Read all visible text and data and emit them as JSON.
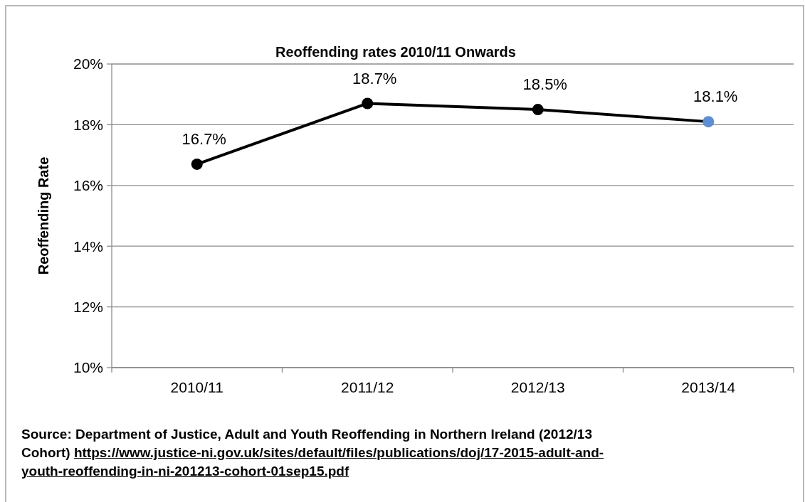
{
  "chart_data": {
    "type": "line",
    "title": "Reoffending rates 2010/11 Onwards",
    "ylabel": "Reoffending Rate",
    "categories": [
      "2010/11",
      "2011/12",
      "2012/13",
      "2013/14"
    ],
    "series": [
      {
        "color": "#000000",
        "colors": [
          "#000000",
          "#000000",
          "#000000",
          "#5b8ed6"
        ],
        "values": [
          16.7,
          18.7,
          18.5,
          18.1
        ],
        "value_labels": [
          "16.7%",
          "18.7%",
          "18.5%",
          "18.1%"
        ]
      }
    ],
    "ylim": [
      10,
      20
    ],
    "yticks": [
      {
        "value": 10,
        "label": "10%"
      },
      {
        "value": 12,
        "label": "12%"
      },
      {
        "value": 14,
        "label": "14%"
      },
      {
        "value": 16,
        "label": "16%"
      },
      {
        "value": 18,
        "label": "18%"
      },
      {
        "value": 20,
        "label": "20%"
      }
    ],
    "grid": "y",
    "marker": "circle",
    "line_style": "solid",
    "annotations": [
      "Source: Department of Justice, Adult and Youth Reoffending in Northern Ireland (2012/13 Cohort)",
      "https://www.justice-ni.gov.uk/sites/default/files/publications/doj/17-2015-adult-and-youth-reoffending-in-ni-201213-cohort-01sep15.pdf"
    ]
  }
}
